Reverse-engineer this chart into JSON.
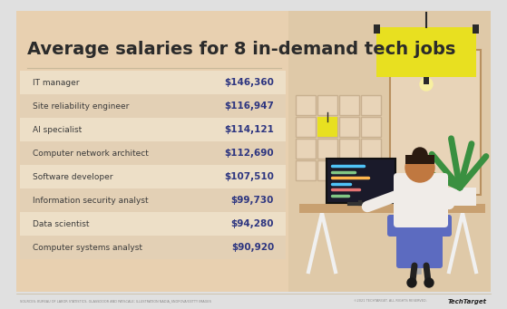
{
  "title": "Average salaries for 8 in-demand tech jobs",
  "jobs": [
    "IT manager",
    "Site reliability engineer",
    "AI specialist",
    "Computer network architect",
    "Software developer",
    "Information security analyst",
    "Data scientist",
    "Computer systems analyst"
  ],
  "salaries": [
    "$146,360",
    "$116,947",
    "$114,121",
    "$112,690",
    "$107,510",
    "$99,730",
    "$94,280",
    "$90,920"
  ],
  "bg_outer": "#e0e0e0",
  "bg_card": "#e8d0b0",
  "bg_card_inner": "#dfc9a8",
  "row_light": "#eddfc7",
  "row_dark": "#e3d0b5",
  "title_color": "#2b2b2b",
  "job_color": "#3a3a3a",
  "salary_color": "#2d3580",
  "divider_color": "#c8b89a",
  "footer_text": "SOURCES: BUREAU OF LABOR STATISTICS, GLASSDOOR AND PAYSCALE; ILLUSTRATION NADIA_SNOPOVA/GETTY IMAGES",
  "footer_right": "©2021 TECHTARGET. ALL RIGHTS RESERVED.",
  "brand": "TechTarget",
  "lamp_yellow": "#e8e020",
  "lamp_dark": "#2a2a2a",
  "wall_color": "#c8a878",
  "window_color": "#d4b88a",
  "window_pane": "#e8d4b8",
  "desk_color": "#c8a070",
  "desk_leg_color": "#f0f0f0",
  "monitor_dark": "#1a1a2a",
  "chair_color": "#5c6bc0",
  "person_skin": "#c07840",
  "person_hair": "#2a1a10",
  "person_shirt": "#f0ece8",
  "plant_green": "#3a9040",
  "plant_pot": "#f0ece8"
}
